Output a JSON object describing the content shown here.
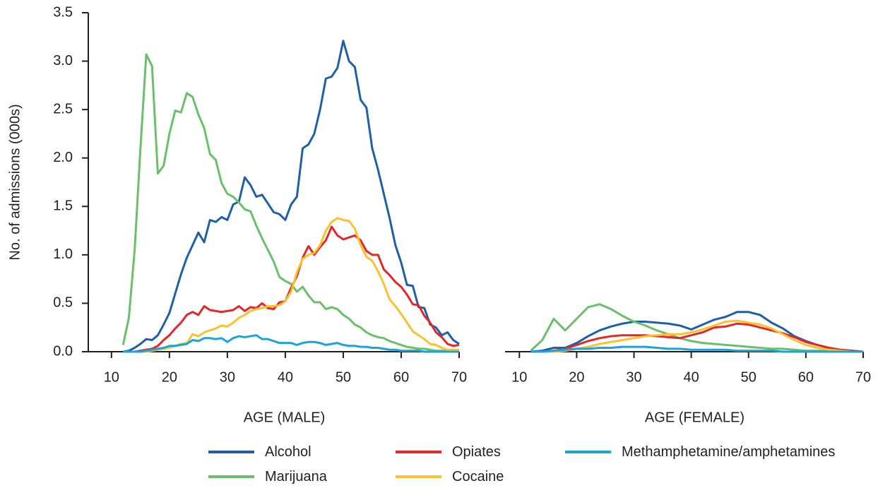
{
  "chart_data": [
    {
      "type": "line",
      "y_label": "No. of admissions (000s)",
      "x_label": "AGE (MALE)",
      "xlim": [
        6,
        70
      ],
      "xticks": [
        10,
        20,
        30,
        40,
        50,
        60,
        70
      ],
      "ylim": [
        0,
        3.5
      ],
      "yticks": [
        {
          "value": 0,
          "label": "0.0"
        },
        0.5,
        {
          "value": 1,
          "label": "1.0"
        },
        1.5,
        {
          "value": 2,
          "label": "2.0"
        },
        2.5,
        {
          "value": 3,
          "label": "3.0"
        },
        3.5
      ],
      "x": [
        12,
        13,
        14,
        15,
        16,
        17,
        18,
        19,
        20,
        21,
        22,
        23,
        24,
        25,
        26,
        27,
        28,
        29,
        30,
        31,
        32,
        33,
        34,
        35,
        36,
        37,
        38,
        39,
        40,
        41,
        42,
        43,
        44,
        45,
        46,
        47,
        48,
        49,
        50,
        51,
        52,
        53,
        54,
        55,
        56,
        57,
        58,
        59,
        60,
        61,
        62,
        63,
        64,
        65,
        66,
        67,
        68,
        69,
        70
      ],
      "series": [
        {
          "name": "Alcohol",
          "color": "#1f5fa8",
          "values": [
            0,
            0.01,
            0.04,
            0.08,
            0.13,
            0.12,
            0.17,
            0.28,
            0.4,
            0.6,
            0.8,
            0.97,
            1.1,
            1.23,
            1.13,
            1.36,
            1.34,
            1.39,
            1.36,
            1.52,
            1.55,
            1.8,
            1.72,
            1.6,
            1.62,
            1.53,
            1.44,
            1.42,
            1.36,
            1.52,
            1.6,
            2.1,
            2.14,
            2.25,
            2.5,
            2.82,
            2.84,
            2.93,
            3.21,
            3.0,
            2.94,
            2.6,
            2.52,
            2.1,
            1.88,
            1.63,
            1.38,
            1.1,
            0.92,
            0.69,
            0.68,
            0.46,
            0.45,
            0.28,
            0.25,
            0.17,
            0.2,
            0.12,
            0.08
          ]
        },
        {
          "name": "Marijuana",
          "color": "#6abf69",
          "values": [
            0.07,
            0.35,
            1.05,
            2.1,
            3.07,
            2.95,
            1.84,
            1.92,
            2.25,
            2.49,
            2.47,
            2.67,
            2.63,
            2.45,
            2.31,
            2.04,
            1.98,
            1.74,
            1.63,
            1.6,
            1.54,
            1.47,
            1.45,
            1.3,
            1.17,
            1.05,
            0.93,
            0.77,
            0.73,
            0.7,
            0.62,
            0.67,
            0.58,
            0.51,
            0.51,
            0.44,
            0.46,
            0.44,
            0.38,
            0.34,
            0.28,
            0.25,
            0.2,
            0.17,
            0.15,
            0.14,
            0.11,
            0.09,
            0.07,
            0.05,
            0.04,
            0.03,
            0.03,
            0.02,
            0.01,
            0.01,
            0.01,
            0.01,
            0.01
          ]
        },
        {
          "name": "Opiates",
          "color": "#e3262a",
          "values": [
            0,
            0,
            0,
            0.01,
            0.02,
            0.03,
            0.06,
            0.12,
            0.17,
            0.24,
            0.3,
            0.38,
            0.41,
            0.38,
            0.47,
            0.43,
            0.42,
            0.41,
            0.42,
            0.43,
            0.47,
            0.42,
            0.46,
            0.45,
            0.5,
            0.45,
            0.44,
            0.51,
            0.52,
            0.66,
            0.78,
            0.97,
            1.09,
            1.0,
            1.08,
            1.15,
            1.29,
            1.2,
            1.16,
            1.18,
            1.2,
            1.15,
            1.04,
            1.0,
            1.0,
            0.85,
            0.79,
            0.72,
            0.67,
            0.59,
            0.49,
            0.48,
            0.37,
            0.3,
            0.2,
            0.15,
            0.08,
            0.06,
            0.07
          ]
        },
        {
          "name": "Cocaine",
          "color": "#f9c22e",
          "values": [
            0,
            0,
            0,
            0,
            0,
            0.01,
            0.02,
            0.03,
            0.04,
            0.06,
            0.08,
            0.09,
            0.18,
            0.16,
            0.2,
            0.22,
            0.24,
            0.27,
            0.26,
            0.3,
            0.35,
            0.38,
            0.42,
            0.44,
            0.45,
            0.47,
            0.47,
            0.48,
            0.52,
            0.62,
            0.82,
            0.96,
            1.0,
            1.02,
            1.1,
            1.25,
            1.34,
            1.38,
            1.36,
            1.35,
            1.27,
            1.1,
            0.98,
            0.94,
            0.83,
            0.7,
            0.54,
            0.47,
            0.39,
            0.3,
            0.21,
            0.17,
            0.13,
            0.08,
            0.07,
            0.04,
            0.02,
            0.02,
            0.02
          ]
        },
        {
          "name": "Methamphetamine/amphetamines",
          "color": "#1aa3de",
          "values": [
            0,
            0,
            0,
            0,
            0.01,
            0.02,
            0.03,
            0.04,
            0.06,
            0.06,
            0.07,
            0.08,
            0.12,
            0.11,
            0.14,
            0.14,
            0.13,
            0.14,
            0.1,
            0.14,
            0.16,
            0.15,
            0.16,
            0.17,
            0.13,
            0.13,
            0.11,
            0.09,
            0.09,
            0.09,
            0.07,
            0.09,
            0.1,
            0.1,
            0.09,
            0.07,
            0.08,
            0.09,
            0.07,
            0.06,
            0.06,
            0.05,
            0.05,
            0.04,
            0.04,
            0.03,
            0.02,
            0.02,
            0.01,
            0.01,
            0.01,
            0.01,
            0,
            0,
            0,
            0,
            0,
            0,
            0
          ]
        }
      ]
    },
    {
      "type": "line",
      "x_label": "AGE (FEMALE)",
      "xlim": [
        7.5,
        70
      ],
      "xticks": [
        10,
        20,
        30,
        40,
        50,
        60,
        70
      ],
      "ylim": [
        0,
        3.5
      ],
      "x": [
        12,
        14,
        16,
        18,
        20,
        22,
        24,
        26,
        28,
        30,
        32,
        34,
        36,
        38,
        40,
        42,
        44,
        46,
        48,
        50,
        52,
        54,
        56,
        58,
        60,
        62,
        64,
        66,
        68,
        70
      ],
      "series": [
        {
          "color": "#1f5fa8",
          "values": [
            0,
            0.01,
            0.04,
            0.04,
            0.09,
            0.16,
            0.22,
            0.26,
            0.29,
            0.31,
            0.31,
            0.3,
            0.29,
            0.27,
            0.23,
            0.28,
            0.33,
            0.36,
            0.41,
            0.41,
            0.38,
            0.3,
            0.24,
            0.16,
            0.11,
            0.07,
            0.04,
            0.02,
            0.01,
            0
          ]
        },
        {
          "color": "#6abf69",
          "values": [
            0.01,
            0.12,
            0.34,
            0.22,
            0.34,
            0.46,
            0.49,
            0.44,
            0.37,
            0.31,
            0.27,
            0.22,
            0.18,
            0.14,
            0.11,
            0.09,
            0.08,
            0.07,
            0.06,
            0.05,
            0.04,
            0.03,
            0.03,
            0.02,
            0.01,
            0.01,
            0.01,
            0,
            0,
            0
          ]
        },
        {
          "color": "#e3262a",
          "values": [
            0,
            0,
            0.01,
            0.03,
            0.07,
            0.11,
            0.14,
            0.16,
            0.17,
            0.17,
            0.17,
            0.16,
            0.15,
            0.14,
            0.17,
            0.2,
            0.25,
            0.26,
            0.29,
            0.28,
            0.25,
            0.22,
            0.19,
            0.15,
            0.1,
            0.07,
            0.04,
            0.02,
            0.01,
            0
          ]
        },
        {
          "color": "#f9c22e",
          "values": [
            0,
            0,
            0,
            0.01,
            0.03,
            0.05,
            0.08,
            0.1,
            0.12,
            0.14,
            0.16,
            0.17,
            0.18,
            0.18,
            0.2,
            0.23,
            0.27,
            0.31,
            0.32,
            0.3,
            0.28,
            0.24,
            0.18,
            0.12,
            0.07,
            0.04,
            0.02,
            0.01,
            0,
            0
          ]
        },
        {
          "color": "#1aa3de",
          "values": [
            0,
            0,
            0.01,
            0.02,
            0.03,
            0.03,
            0.04,
            0.04,
            0.05,
            0.05,
            0.05,
            0.04,
            0.03,
            0.03,
            0.02,
            0.02,
            0.02,
            0.02,
            0.01,
            0.01,
            0.01,
            0.01,
            0,
            0,
            0,
            0,
            0,
            0,
            0,
            0
          ]
        }
      ]
    }
  ]
}
